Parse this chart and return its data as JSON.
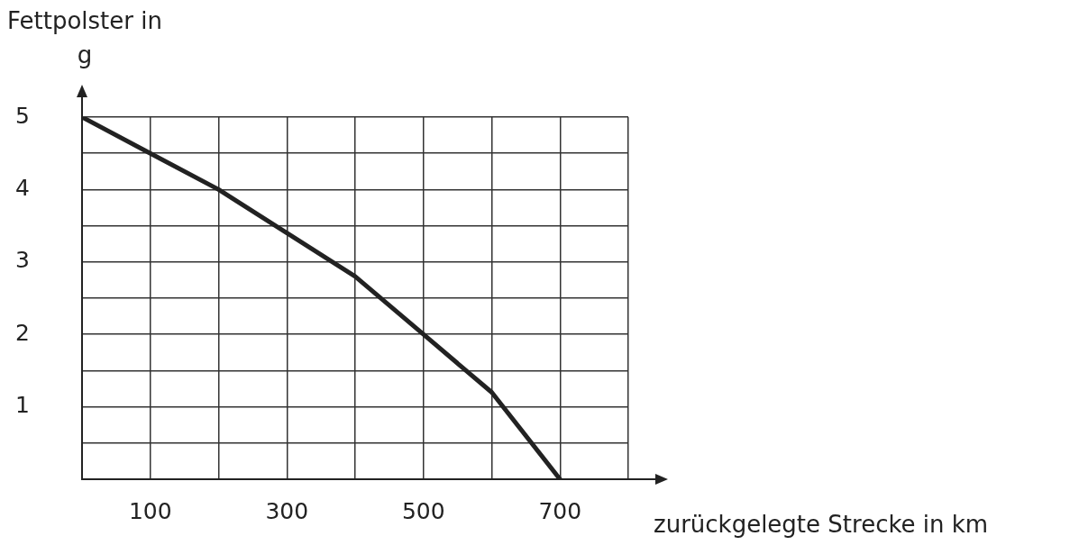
{
  "chart_data": {
    "type": "line",
    "xlabel": "zurückgelegte Strecke in km",
    "ylabel": "Fettpolster in g",
    "x": [
      0,
      100,
      200,
      300,
      400,
      500,
      600,
      700
    ],
    "series": [
      {
        "color": "#222222",
        "values": [
          5,
          4.5,
          4,
          3.4,
          2.8,
          2,
          1.2,
          0
        ]
      }
    ],
    "xlim": [
      0,
      800
    ],
    "xticks": [
      {
        "value": 0,
        "label": null
      },
      100,
      {
        "value": 200,
        "label": null
      },
      300,
      {
        "value": 400,
        "label": null
      },
      500,
      {
        "value": 600,
        "label": null
      },
      700,
      {
        "value": 800,
        "label": null
      }
    ],
    "ylim": [
      0,
      5
    ],
    "yticks": [
      {
        "value": 0,
        "label": null
      },
      {
        "value": 0.5,
        "label": null
      },
      1,
      {
        "value": 1.5,
        "label": null
      },
      2,
      {
        "value": 2.5,
        "label": null
      },
      3,
      {
        "value": 3.5,
        "label": null
      },
      4,
      {
        "value": 4.5,
        "label": null
      },
      5
    ],
    "grid": true,
    "legend": false,
    "marker": "none",
    "line_style": "solid"
  }
}
